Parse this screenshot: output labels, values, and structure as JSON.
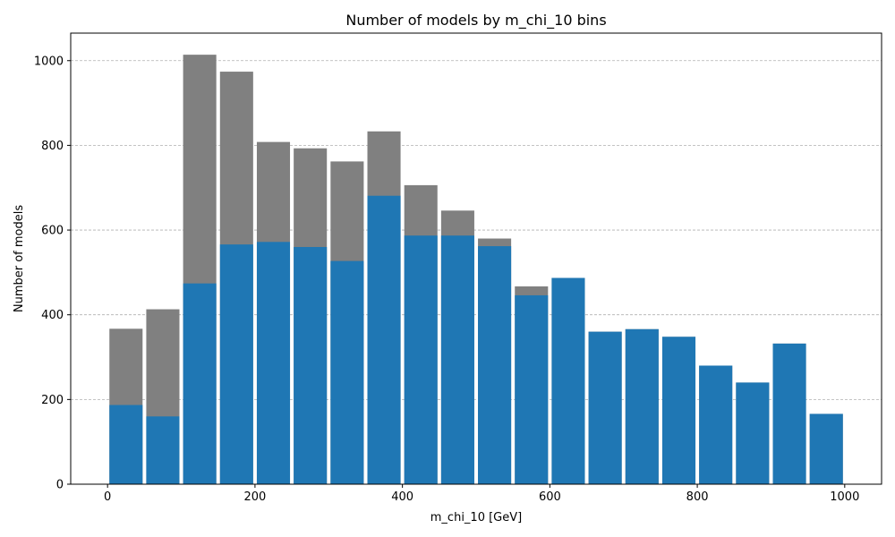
{
  "chart_data": {
    "type": "bar",
    "title": "Number of models by m_chi_10 bins",
    "xlabel": "m_chi_10 [GeV]",
    "ylabel": "Number of models",
    "xlim": [
      -50,
      1050
    ],
    "ylim": [
      0,
      1065
    ],
    "xticks": [
      0,
      200,
      400,
      600,
      800,
      1000
    ],
    "yticks": [
      0,
      200,
      400,
      600,
      800,
      1000
    ],
    "grid": "y dashed",
    "bin_width": 50,
    "bar_fraction": 0.9,
    "bin_starts": [
      0,
      50,
      100,
      150,
      200,
      250,
      300,
      350,
      400,
      450,
      500,
      550,
      600,
      650,
      700,
      750,
      800,
      850,
      900,
      950
    ],
    "series": [
      {
        "color": "#808080",
        "values": [
          367,
          413,
          1014,
          974,
          808,
          793,
          762,
          833,
          706,
          646,
          580,
          467,
          487,
          360,
          366,
          348,
          280,
          240,
          332,
          166
        ]
      },
      {
        "color": "#1f77b4",
        "values": [
          187,
          160,
          474,
          566,
          572,
          560,
          527,
          681,
          587,
          587,
          562,
          446,
          487,
          360,
          366,
          348,
          280,
          240,
          332,
          166
        ]
      }
    ]
  }
}
